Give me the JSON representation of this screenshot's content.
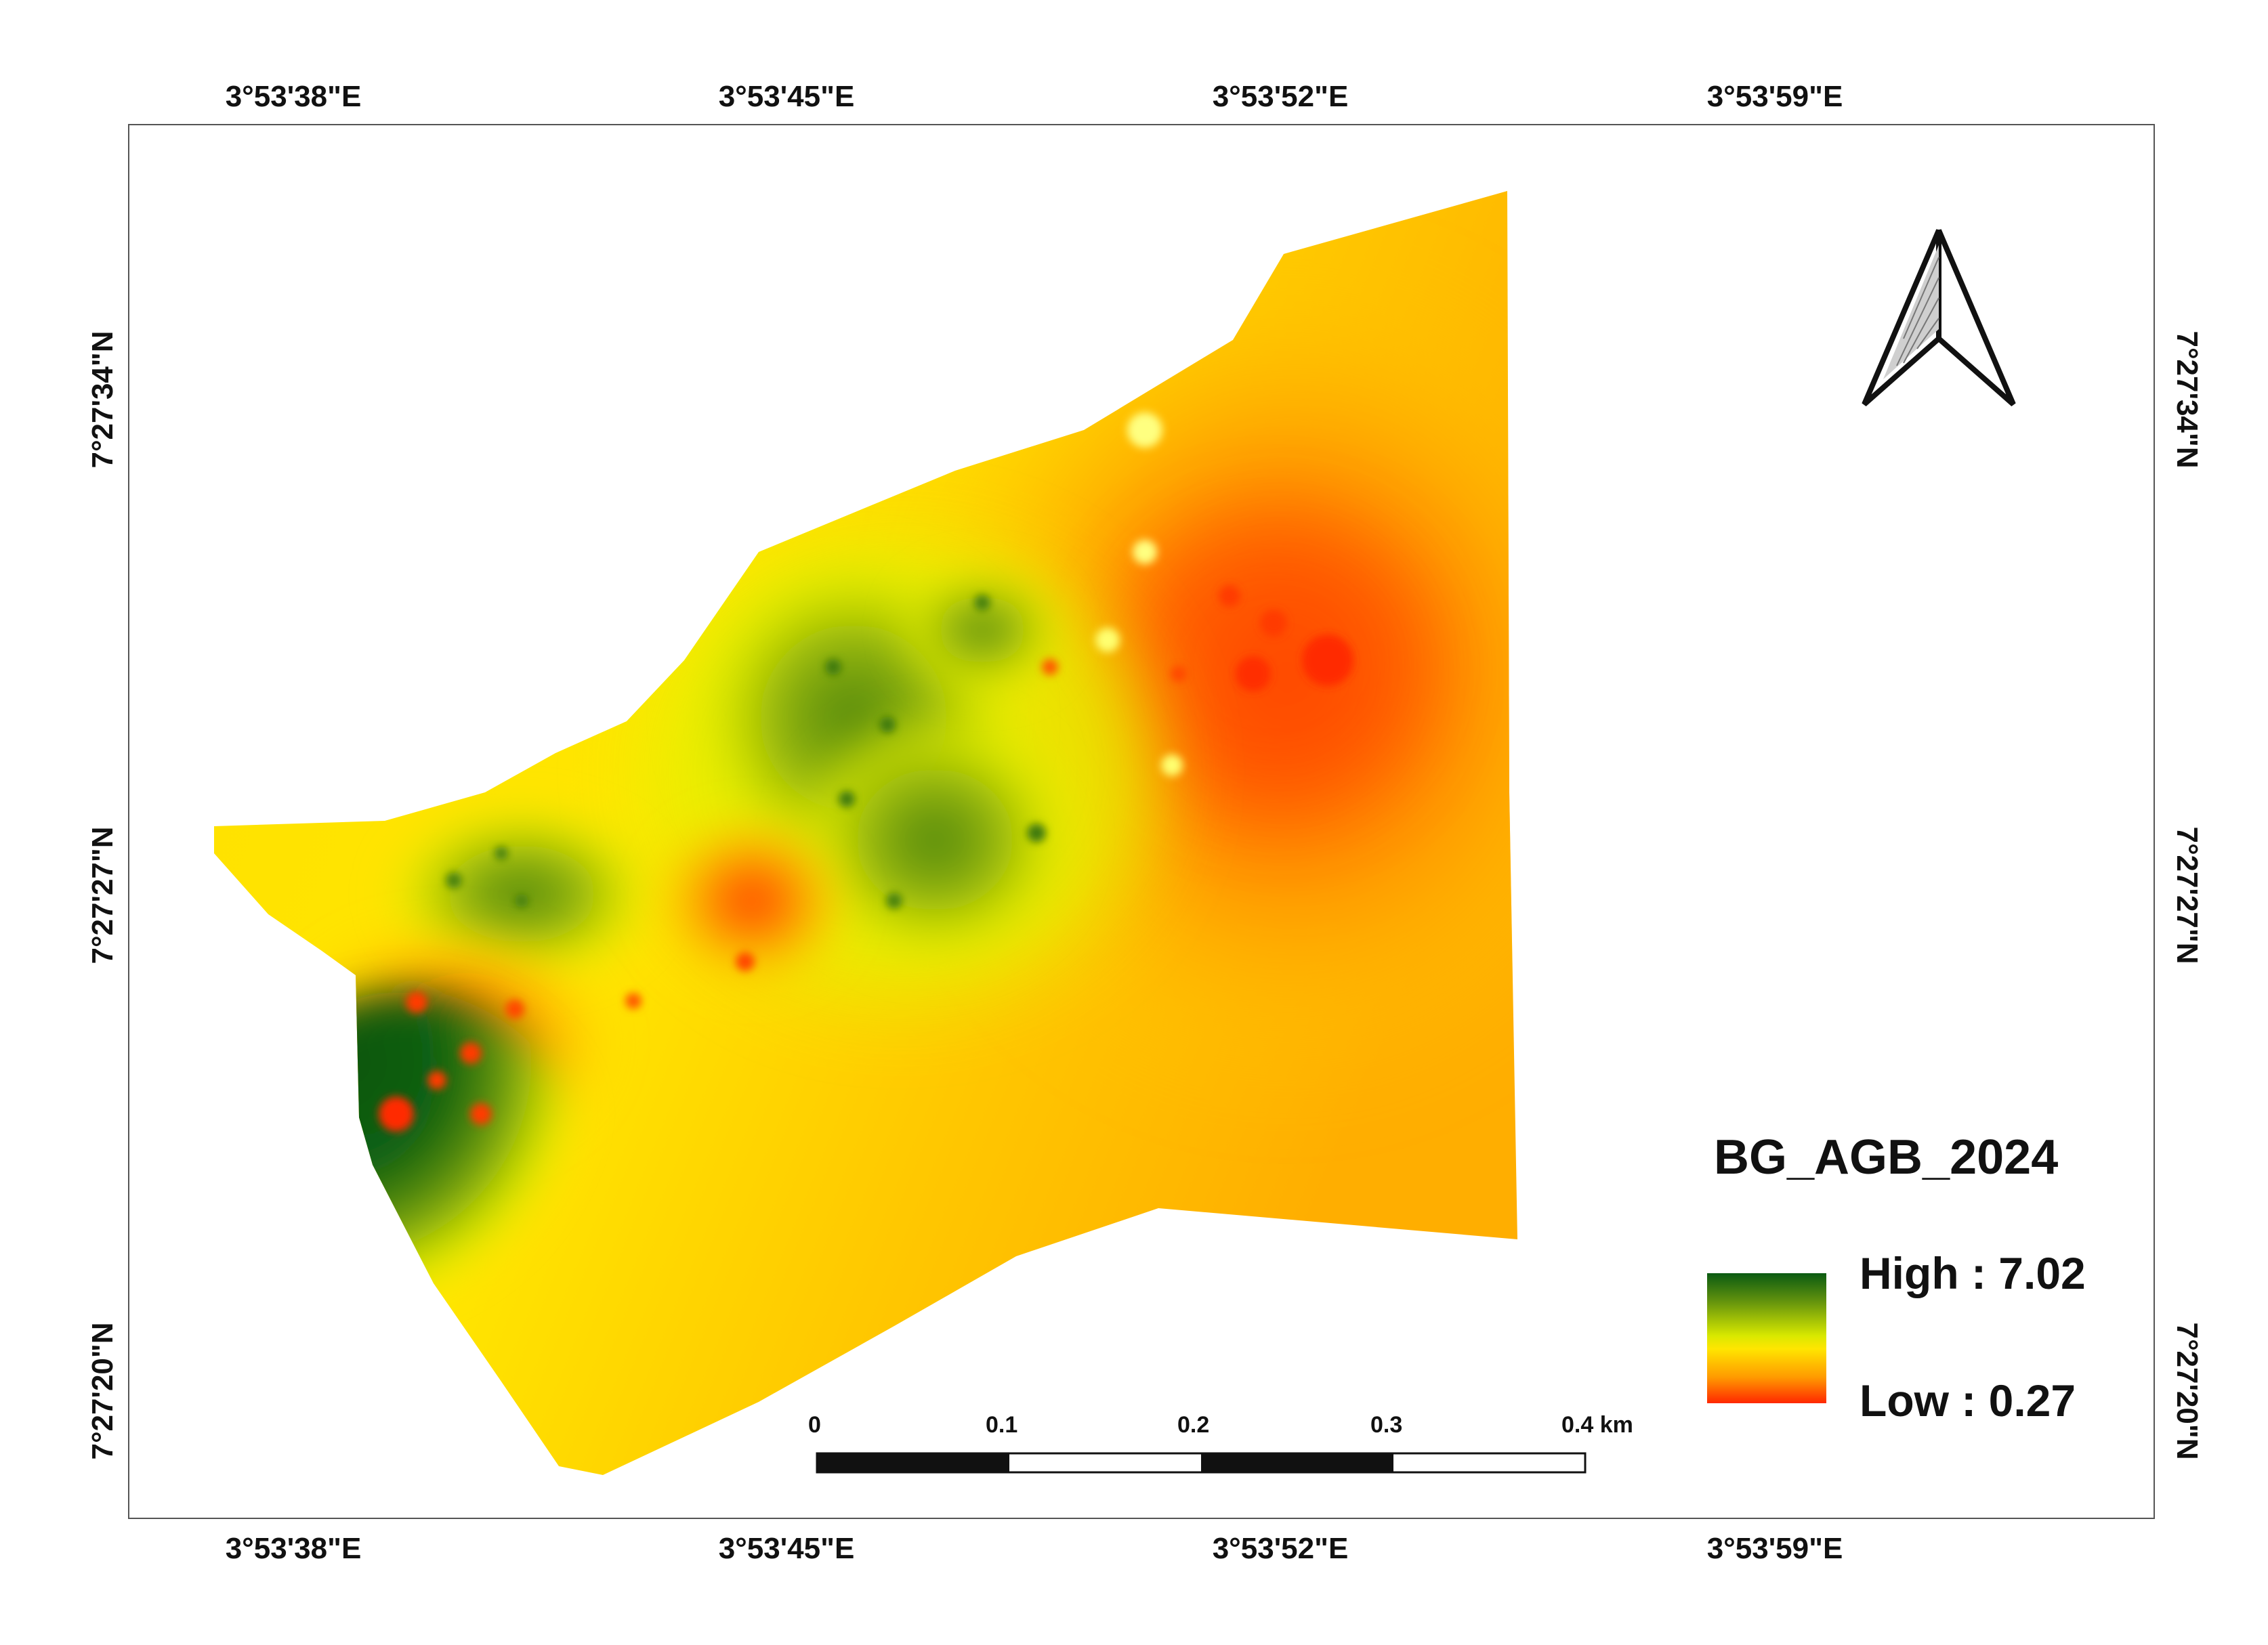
{
  "map": {
    "legend": {
      "title": "BG_AGB_2024",
      "high_label": "High : 7.02",
      "low_label": "Low : 0.27",
      "high_color": "#0a5a12",
      "mid_color": "#ffe600",
      "low_color": "#ff2800"
    },
    "grid": {
      "longitudes": [
        "3°53'38\"E",
        "3°53'45\"E",
        "3°53'52\"E",
        "3°53'59\"E"
      ],
      "latitudes": [
        "7°27'34\"N",
        "7°27'27\"N",
        "7°27'20\"N"
      ]
    },
    "scale_bar": {
      "labels": [
        "0",
        "0.1",
        "0.2",
        "0.3",
        "0.4 km"
      ]
    },
    "north_arrow": {
      "icon": "north-arrow-icon"
    }
  }
}
